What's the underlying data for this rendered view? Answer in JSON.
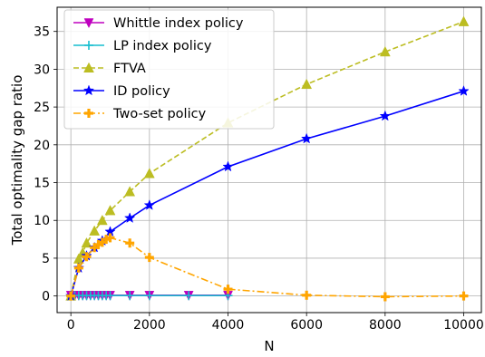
{
  "chart_data": {
    "type": "line",
    "xlabel": "N",
    "ylabel": "Total optimality gap ratio",
    "xlim": [
      -350,
      10450
    ],
    "ylim": [
      -2.2,
      38.2
    ],
    "x_ticks": [
      0,
      2000,
      4000,
      6000,
      8000,
      10000
    ],
    "y_ticks": [
      0,
      5,
      10,
      15,
      20,
      25,
      30,
      35
    ],
    "grid": true,
    "legend_position": "top-left",
    "series": [
      {
        "name": "Whittle index policy",
        "color": "#bf00bf",
        "marker": "triangle-down",
        "line_style": "solid",
        "points": [
          [
            0,
            0.1
          ],
          [
            100,
            0.1
          ],
          [
            200,
            0.1
          ],
          [
            300,
            0.1
          ],
          [
            400,
            0.1
          ],
          [
            500,
            0.1
          ],
          [
            600,
            0.1
          ],
          [
            700,
            0.1
          ],
          [
            800,
            0.1
          ],
          [
            900,
            0.1
          ],
          [
            1000,
            0.1
          ],
          [
            1500,
            0.1
          ],
          [
            2000,
            0.1
          ],
          [
            3000,
            0.1
          ],
          [
            4000,
            0.1
          ]
        ]
      },
      {
        "name": "LP index policy",
        "color": "#17becf",
        "marker": "plus-thin",
        "line_style": "solid",
        "points": [
          [
            0,
            0.05
          ],
          [
            100,
            0.05
          ],
          [
            200,
            0.05
          ],
          [
            300,
            0.05
          ],
          [
            400,
            0.05
          ],
          [
            500,
            0.05
          ],
          [
            600,
            0.05
          ],
          [
            700,
            0.05
          ],
          [
            800,
            0.05
          ],
          [
            900,
            0.05
          ],
          [
            1000,
            0.05
          ],
          [
            1500,
            0.05
          ],
          [
            2000,
            0.05
          ],
          [
            3000,
            0.05
          ],
          [
            4000,
            0.05
          ]
        ]
      },
      {
        "name": "FTVA",
        "color": "#bcbd22",
        "marker": "triangle-up",
        "line_style": "dashed",
        "points": [
          [
            0,
            0
          ],
          [
            200,
            4.9
          ],
          [
            300,
            5.7
          ],
          [
            400,
            7.0
          ],
          [
            600,
            8.6
          ],
          [
            800,
            10.0
          ],
          [
            1000,
            11.3
          ],
          [
            1500,
            13.8
          ],
          [
            2000,
            16.2
          ],
          [
            4000,
            22.9
          ],
          [
            6000,
            28.0
          ],
          [
            8000,
            32.3
          ],
          [
            10000,
            36.3
          ]
        ]
      },
      {
        "name": "ID policy",
        "color": "#0000ff",
        "marker": "star",
        "line_style": "solid",
        "points": [
          [
            0,
            0
          ],
          [
            200,
            3.7
          ],
          [
            400,
            5.3
          ],
          [
            600,
            6.4
          ],
          [
            800,
            7.3
          ],
          [
            1000,
            8.5
          ],
          [
            1500,
            10.3
          ],
          [
            2000,
            12.0
          ],
          [
            4000,
            17.1
          ],
          [
            6000,
            20.8
          ],
          [
            8000,
            23.8
          ],
          [
            10000,
            27.1
          ]
        ]
      },
      {
        "name": "Two-set policy",
        "color": "#ffa500",
        "marker": "plus-thick",
        "line_style": "dashdot",
        "points": [
          [
            0,
            0
          ],
          [
            200,
            3.7
          ],
          [
            400,
            5.2
          ],
          [
            600,
            6.4
          ],
          [
            700,
            6.8
          ],
          [
            800,
            7.1
          ],
          [
            900,
            7.5
          ],
          [
            1000,
            7.7
          ],
          [
            1500,
            7.0
          ],
          [
            2000,
            5.1
          ],
          [
            4000,
            0.9
          ],
          [
            6000,
            0.1
          ],
          [
            8000,
            -0.1
          ],
          [
            10000,
            0.0
          ]
        ]
      }
    ]
  }
}
